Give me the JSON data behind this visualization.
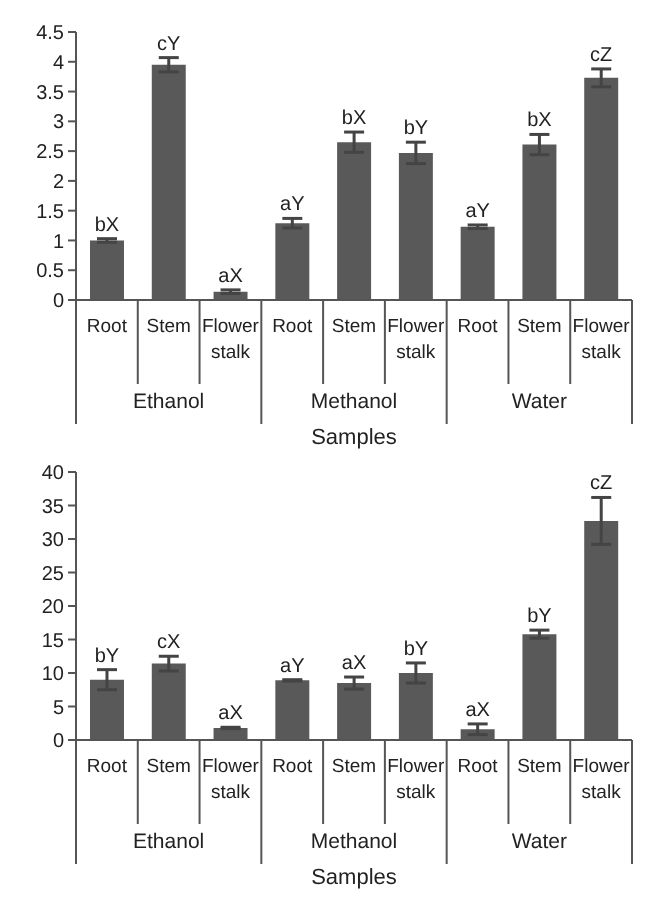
{
  "chart_data": [
    {
      "type": "bar",
      "xlabel": "Samples",
      "categories": [
        "Root",
        "Stem",
        "Flower stalk",
        "Root",
        "Stem",
        "Flower stalk",
        "Root",
        "Stem",
        "Flower stalk"
      ],
      "annotations": [
        "Ethanol",
        "Methanol",
        "Water"
      ],
      "values": [
        1.0,
        3.95,
        0.14,
        1.29,
        2.65,
        2.47,
        1.23,
        2.61,
        3.73
      ],
      "errors": [
        0.03,
        0.12,
        0.03,
        0.08,
        0.17,
        0.18,
        0.03,
        0.17,
        0.15
      ],
      "value_labels": [
        "bX",
        "cY",
        "aX",
        "aY",
        "bX",
        "bY",
        "aY",
        "bX",
        "cZ"
      ],
      "color": "#595959",
      "ylim": [
        0,
        4.5
      ],
      "yticks": [
        0,
        0.5,
        1,
        1.5,
        2,
        2.5,
        3,
        3.5,
        4,
        4.5
      ],
      "grid": false
    },
    {
      "type": "bar",
      "xlabel": "Samples",
      "categories": [
        "Root",
        "Stem",
        "Flower stalk",
        "Root",
        "Stem",
        "Flower stalk",
        "Root",
        "Stem",
        "Flower stalk"
      ],
      "annotations": [
        "Ethanol",
        "Methanol",
        "Water"
      ],
      "values": [
        9.0,
        11.4,
        1.8,
        8.9,
        8.5,
        10.0,
        1.6,
        15.8,
        32.7
      ],
      "errors": [
        1.5,
        1.1,
        0.1,
        0.1,
        0.9,
        1.5,
        0.8,
        0.6,
        3.5
      ],
      "value_labels": [
        "bY",
        "cX",
        "aX",
        "aY",
        "aX",
        "bY",
        "aX",
        "bY",
        "cZ"
      ],
      "color": "#595959",
      "ylim": [
        0,
        40
      ],
      "yticks": [
        0,
        5,
        10,
        15,
        20,
        25,
        30,
        35,
        40
      ],
      "grid": false
    }
  ]
}
